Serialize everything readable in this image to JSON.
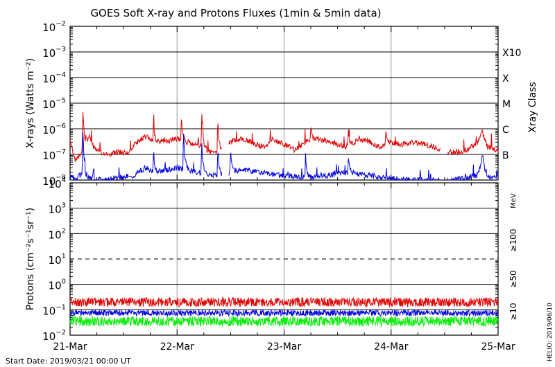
{
  "title": "GOES Soft X-ray and Protons Fluxes   (1min & 5min data)",
  "start_date": "Start Date: 2019/03/21 00:00 UT",
  "credit": "HELIO: 2019/06/10",
  "colors": {
    "red": "#e00000",
    "blue": "#0000e0",
    "green": "#00ee00",
    "grid": "#000000",
    "day_line": "#aaaaaa"
  },
  "chart_data": [
    {
      "type": "line",
      "panel": "xray",
      "ylabel": "X-rays (Watts m⁻²)",
      "yscale": "log",
      "ylim": [
        1e-08,
        0.01
      ],
      "ytick_exponents": [
        -8,
        -7,
        -6,
        -5,
        -4,
        -3,
        -2
      ],
      "xlim": [
        "21-Mar",
        "25-Mar"
      ],
      "x_tick_labels": [
        "21-Mar",
        "22-Mar",
        "23-Mar",
        "24-Mar",
        "25-Mar"
      ],
      "right_axis_title": "Xray Class",
      "class_labels": [
        {
          "label": "B",
          "value": 1e-07
        },
        {
          "label": "C",
          "value": 1e-06
        },
        {
          "label": "M",
          "value": 1e-05
        },
        {
          "label": "X",
          "value": 0.0001
        },
        {
          "label": "X10",
          "value": 0.001
        }
      ],
      "series": [
        {
          "color": "red",
          "points": [
            [
              0.0,
              3e-07
            ],
            [
              0.05,
              6e-08
            ],
            [
              0.12,
              1.5e-07
            ],
            [
              0.18,
              5e-07
            ],
            [
              0.22,
              2e-07
            ],
            [
              0.28,
              1.2e-07
            ],
            [
              0.35,
              1e-07
            ],
            [
              0.45,
              1.3e-07
            ],
            [
              0.5,
              1.1e-07
            ],
            [
              0.55,
              1.2e-07
            ],
            [
              0.6,
              2.5e-07
            ],
            [
              0.7,
              5e-07
            ],
            [
              0.8,
              3e-07
            ],
            [
              0.9,
              3.5e-07
            ],
            [
              1.0,
              4e-07
            ],
            [
              1.1,
              3e-07
            ],
            [
              1.2,
              2.5e-07
            ],
            [
              1.3,
              1.2e-07
            ],
            [
              1.4,
              1.3e-07
            ],
            [
              1.5,
              3e-07
            ],
            [
              1.6,
              4e-07
            ],
            [
              1.7,
              3e-07
            ],
            [
              1.8,
              2e-07
            ],
            [
              1.9,
              3.5e-07
            ],
            [
              2.0,
              2.5e-07
            ],
            [
              2.1,
              1.5e-07
            ],
            [
              2.2,
              3e-07
            ],
            [
              2.3,
              4e-07
            ],
            [
              2.4,
              3.5e-07
            ],
            [
              2.5,
              2.5e-07
            ],
            [
              2.6,
              2e-07
            ],
            [
              2.7,
              4e-07
            ],
            [
              2.8,
              3e-07
            ],
            [
              2.9,
              2e-07
            ],
            [
              3.0,
              3e-07
            ],
            [
              3.1,
              2.5e-07
            ],
            [
              3.2,
              3e-07
            ],
            [
              3.3,
              2.5e-07
            ],
            [
              3.4,
              2e-07
            ],
            [
              3.5,
              1.2e-07
            ],
            [
              3.6,
              1.2e-07
            ],
            [
              3.7,
              1.5e-07
            ],
            [
              3.8,
              2.5e-07
            ],
            [
              3.85,
              8e-07
            ],
            [
              3.9,
              2e-07
            ],
            [
              4.0,
              1.5e-07
            ]
          ],
          "gaps": [
            [
              1.42,
              1.48
            ],
            [
              3.46,
              3.52
            ]
          ],
          "peaks": [
            [
              0.12,
              5.5e-06
            ],
            [
              0.78,
              2e-06
            ],
            [
              1.04,
              2.5e-06
            ],
            [
              1.23,
              4.5e-06
            ],
            [
              1.38,
              3e-06
            ],
            [
              2.25,
              1.2e-06
            ],
            [
              2.6,
              1e-06
            ],
            [
              2.95,
              9e-07
            ]
          ]
        },
        {
          "color": "blue",
          "points": [
            [
              0.0,
              1.5e-08
            ],
            [
              0.05,
              1e-08
            ],
            [
              0.12,
              2e-08
            ],
            [
              0.15,
              1.2e-08
            ],
            [
              0.3,
              1e-08
            ],
            [
              0.6,
              1.5e-08
            ],
            [
              0.7,
              3e-08
            ],
            [
              0.8,
              2e-08
            ],
            [
              1.0,
              3e-08
            ],
            [
              1.1,
              2.5e-08
            ],
            [
              1.2,
              2e-08
            ],
            [
              1.4,
              1.5e-08
            ],
            [
              1.5,
              2e-08
            ],
            [
              1.6,
              2.5e-08
            ],
            [
              1.8,
              2e-08
            ],
            [
              2.0,
              1.5e-08
            ],
            [
              2.2,
              1.2e-08
            ],
            [
              2.4,
              1.5e-08
            ],
            [
              2.6,
              2e-08
            ],
            [
              2.8,
              1.5e-08
            ],
            [
              3.0,
              1.2e-08
            ],
            [
              3.2,
              1e-08
            ],
            [
              3.5,
              1e-08
            ],
            [
              3.8,
              1.5e-08
            ],
            [
              3.85,
              5e-08
            ],
            [
              3.9,
              1.2e-08
            ],
            [
              4.0,
              1.5e-08
            ]
          ],
          "gaps": [
            [
              1.42,
              1.48
            ],
            [
              3.46,
              3.52
            ]
          ],
          "peaks": [
            [
              0.12,
              8e-07
            ],
            [
              0.78,
              1.5e-07
            ],
            [
              1.06,
              9e-07
            ],
            [
              1.23,
              3e-07
            ],
            [
              1.38,
              2e-07
            ],
            [
              1.5,
              1.5e-07
            ],
            [
              2.2,
              1e-07
            ],
            [
              2.6,
              8e-08
            ],
            [
              3.85,
              1.2e-07
            ]
          ]
        }
      ]
    },
    {
      "type": "line",
      "panel": "protons",
      "ylabel": "Protons (cm⁻²s⁻¹sr⁻¹)",
      "yscale": "log",
      "ylim": [
        0.01,
        10000
      ],
      "ytick_exponents": [
        -2,
        -1,
        0,
        1,
        2,
        3,
        4
      ],
      "dashed_threshold": 10,
      "xlim": [
        "21-Mar",
        "25-Mar"
      ],
      "x_tick_labels": [
        "21-Mar",
        "22-Mar",
        "23-Mar",
        "24-Mar",
        "25-Mar"
      ],
      "right_unit": "MeV",
      "series": [
        {
          "name": "≥10",
          "color": "red",
          "baseline": 0.2,
          "noise_decades": 0.18
        },
        {
          "name": "≥50",
          "color": "blue",
          "baseline": 0.075,
          "noise_decades": 0.12
        },
        {
          "name": "≥100",
          "color": "green",
          "baseline": 0.035,
          "noise_decades": 0.2
        }
      ]
    }
  ]
}
